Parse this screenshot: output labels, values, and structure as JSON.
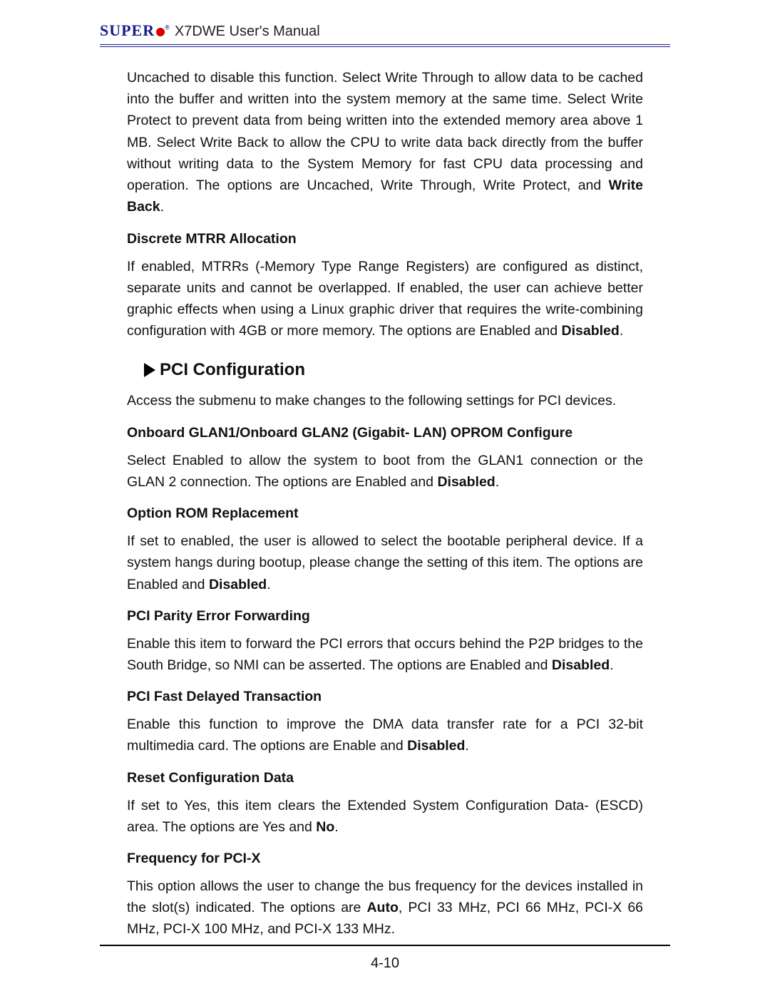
{
  "header": {
    "brand": "SUPER",
    "manual_title": "X7DWE User's Manual"
  },
  "intro_para": {
    "text_a": "Uncached to disable this function. Select Write Through to allow data to be cached into the buffer and written into the system memory at the same time. Select Write Protect to prevent data from being written into the extended memory area above 1 MB. Select Write Back to allow the CPU to write data back directly from the buffer without writing data to the System Memory for fast CPU data processing and operation. The options are Uncached, Write Through, Write Protect, and ",
    "bold_a": "Write Back",
    "tail_a": "."
  },
  "mtrr": {
    "head": "Discrete MTRR Allocation",
    "text_a": "If enabled, MTRRs (-Memory Type Range Registers) are configured as distinct, separate units and cannot be overlapped. If enabled, the user can achieve better graphic effects when using a Linux graphic driver that requires the write-combining configuration with 4GB or more memory. The options are Enabled and ",
    "bold_a": "Disabled",
    "tail_a": "."
  },
  "pci_section": "PCI Configuration",
  "pci_intro": "Access the submenu to make changes to the following settings for PCI devices.",
  "glan": {
    "head": "Onboard GLAN1/Onboard GLAN2 (Gigabit- LAN) OPROM Configure",
    "text_a": "Select Enabled to allow the system to boot from the GLAN1 connection or the GLAN 2 connection. The options are Enabled and ",
    "bold_a": "Disabled",
    "tail_a": "."
  },
  "oprom": {
    "head": "Option ROM Replacement",
    "text_a": "If set to enabled, the user is allowed to select the bootable peripheral device. If a system hangs during bootup, please change the setting of this item. The options are Enabled and ",
    "bold_a": "Disabled",
    "tail_a": "."
  },
  "parity": {
    "head": "PCI Parity Error Forwarding",
    "text_a": "Enable this item to forward the PCI errors that occurs behind the P2P bridges to the South Bridge, so NMI can be asserted. The options are Enabled and ",
    "bold_a": "Disabled",
    "tail_a": "."
  },
  "fastdelay": {
    "head": "PCI Fast Delayed Transaction",
    "text_a": "Enable this function to improve the DMA data transfer rate for a PCI 32-bit multimedia card. The options are Enable and ",
    "bold_a": "Disabled",
    "tail_a": "."
  },
  "reset": {
    "head": "Reset Configuration Data",
    "text_a": "If set to Yes, this item clears the Extended System Configuration Data- (ESCD) area. The options are Yes and ",
    "bold_a": "No",
    "tail_a": "."
  },
  "freq": {
    "head": "Frequency for PCI-X",
    "text_a": "This option allows the user to change the bus frequency for the devices installed in the slot(s) indicated. The options are ",
    "bold_a": "Auto",
    "tail_a": ", PCI 33 MHz, PCI 66 MHz, PCI-X 66 MHz, PCI-X 100 MHz, and PCI-X 133 MHz."
  },
  "page_number": "4-10"
}
